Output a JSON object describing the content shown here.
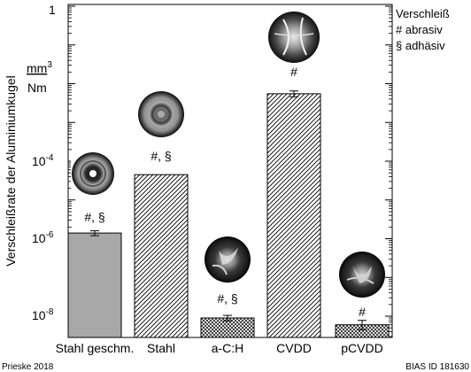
{
  "chart_data": {
    "type": "bar",
    "yscale": "log",
    "ylim": [
      5e-09,
      1
    ],
    "ytick_labels": [
      "1",
      "10-4",
      "10-6",
      "10-8"
    ],
    "ylabel": "Verschleißrate der Aluminiumkugel",
    "unit_numerator": "mm3",
    "unit_denominator": "Nm",
    "categories": [
      "Stahl geschm.",
      "Stahl",
      "a-C:H",
      "CVDD",
      "pCVDD"
    ],
    "values": [
      1.4e-06,
      4.5e-05,
      9e-09,
      0.0055,
      6e-09
    ],
    "error_low": [
      1.2e-06,
      null,
      7.6e-09,
      0.0046,
      4.5e-09
    ],
    "error_high": [
      1.6e-06,
      null,
      1.05e-08,
      0.0065,
      7.8e-09
    ],
    "bar_labels": [
      "#, §",
      "#, §",
      "#, §",
      "#",
      "#"
    ],
    "fills": [
      "gray",
      "hatch",
      "crosshatch",
      "hatch",
      "crosshatch"
    ],
    "legend": {
      "title": "Verschleiß",
      "items": [
        "# abrasiv",
        "§ adhäsiv"
      ],
      "placement": "top-right"
    },
    "colors": {
      "gray_fill": "#a8a8a8",
      "ink": "#000000"
    }
  },
  "footer": {
    "left": "Prieske 2018",
    "right": "BIAS ID 181630"
  }
}
